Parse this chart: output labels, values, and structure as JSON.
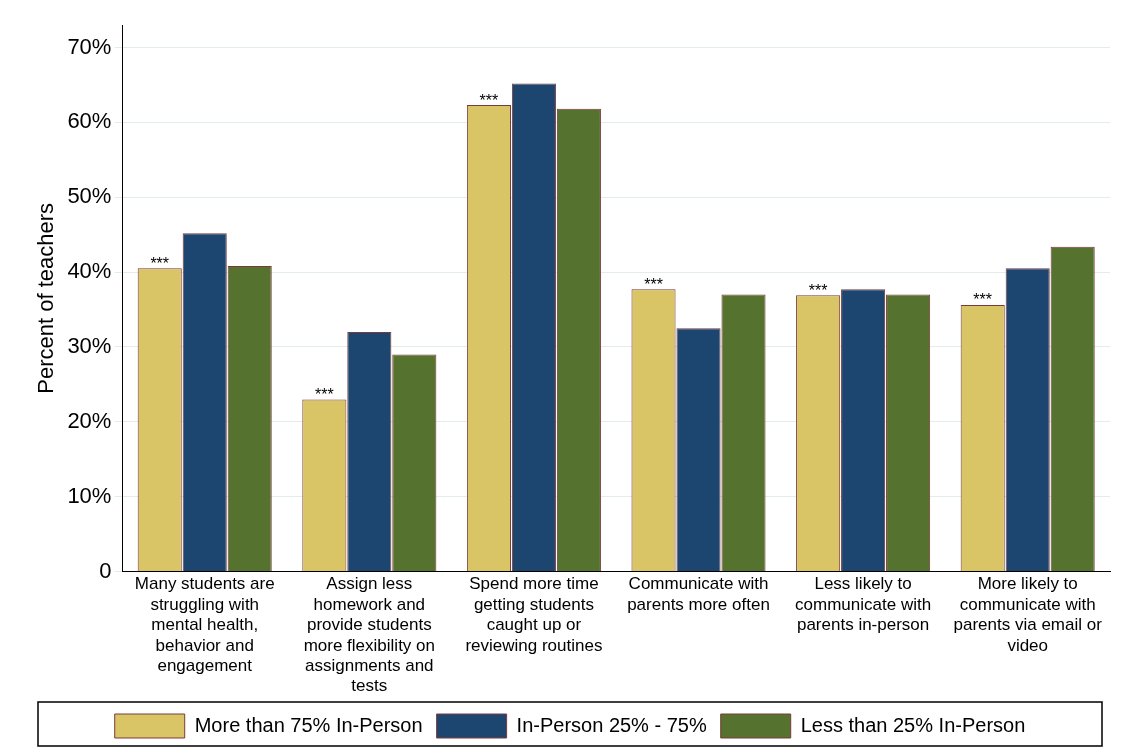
{
  "chart_data": {
    "type": "bar",
    "ylabel": "Percent of teachers",
    "categories": [
      "Many students are struggling with mental health, behavior and engagement",
      "Assign less homework and provide students more flexibility on assignments and tests",
      "Spend more time getting students caught up or reviewing routines",
      "Communicate with parents more often",
      "Less likely to communicate with parents in-person",
      "More likely to communicate with parents via email or video"
    ],
    "series": [
      {
        "name": "More than 75% In-Person",
        "color": "#d9c466",
        "values": [
          40.5,
          23,
          62.3,
          37.7,
          36.9,
          35.6
        ]
      },
      {
        "name": "In-Person 25% - 75%",
        "color": "#1c4670",
        "values": [
          45.2,
          32,
          65.2,
          32.5,
          37.7,
          40.5
        ]
      },
      {
        "name": "Less than 25% In-Person",
        "color": "#56722f",
        "values": [
          40.8,
          29,
          61.8,
          37,
          37,
          43.4
        ]
      }
    ],
    "ylim": [
      0,
      73
    ],
    "yticks": [
      {
        "value": 0,
        "label": "0"
      },
      {
        "value": 10,
        "label": "10%"
      },
      {
        "value": 20,
        "label": "20%"
      },
      {
        "value": 30,
        "label": "30%"
      },
      {
        "value": 40,
        "label": "40%"
      },
      {
        "value": 50,
        "label": "50%"
      },
      {
        "value": 60,
        "label": "60%"
      },
      {
        "value": 70,
        "label": "70%"
      }
    ],
    "grid": "y",
    "legend": "bottom",
    "annotations": [
      "***",
      "***",
      "***",
      "***",
      "***",
      "***"
    ]
  }
}
